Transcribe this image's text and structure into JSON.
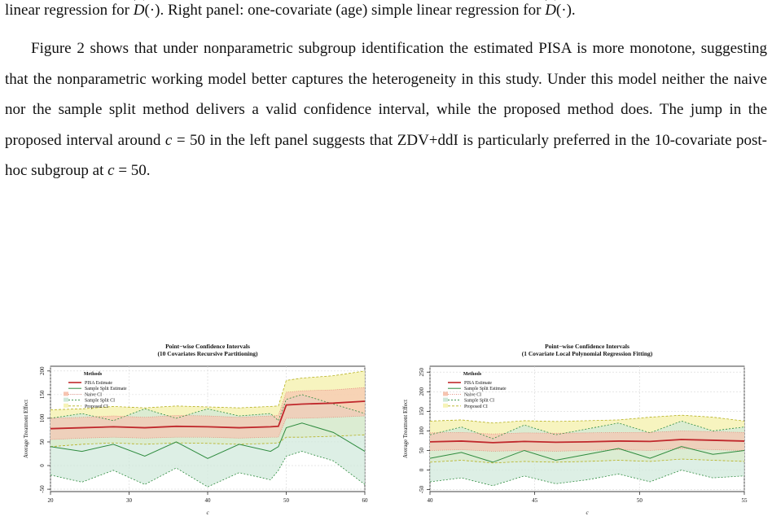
{
  "caption": {
    "part1": "linear regression for ",
    "part2": ". Right panel: one-covariate (age) simple linear regression for ",
    "part3": ".",
    "estimator": "D",
    "arg": "(·)"
  },
  "paragraph": {
    "s1": "Figure 2 shows that under nonparametric subgroup identification the estimated PISA is more monotone, suggesting that the nonparametric working model better captures the heterogeneity in this study. Under this model neither the naive nor the sample split method delivers a valid confidence interval, while the proposed method does.  The jump in the proposed interval around ",
    "s2": " in the left panel suggests that ZDV+ddI is particularly preferred in the 10-covariate post-hoc subgroup at ",
    "s3": ".",
    "c_expr": "c",
    "eq": " = 50"
  },
  "colors": {
    "pisa": "#c0282c",
    "split": "#2e8b3e",
    "naive_fill": "#f6c4b0",
    "split_fill": "#cfe8da",
    "proposed_fill": "#f6f3b8",
    "proposed_line": "#b5b01e",
    "naive_line": "#e08070"
  },
  "chart_data": [
    {
      "type": "line",
      "title": "Point−wise Confidence Intervals",
      "subtitle": "(10 Covariates Recursive Partitioning)",
      "xlabel": "c",
      "ylabel": "Average Treatment Effect",
      "xlim": [
        20,
        60
      ],
      "ylim": [
        -55,
        210
      ],
      "xticks": [
        "20",
        "30",
        "40",
        "50",
        "60"
      ],
      "yticks": [
        "-50",
        "0",
        "50",
        "100",
        "150",
        "200"
      ],
      "grid": true,
      "legend_title": "Methods",
      "legend_position": "top-left",
      "legend": [
        "PISA Estimate",
        "Sample Split Estimate",
        "Naive CI",
        "Sample Split CI",
        "Proposed CI"
      ],
      "x": [
        20,
        24,
        28,
        32,
        36,
        40,
        44,
        48,
        49,
        50,
        52,
        56,
        60
      ],
      "series": [
        {
          "name": "PISA Estimate",
          "values": [
            78,
            80,
            82,
            80,
            83,
            82,
            80,
            82,
            83,
            128,
            130,
            132,
            136
          ]
        },
        {
          "name": "Naive CI",
          "values_low": [
            55,
            58,
            60,
            58,
            60,
            60,
            58,
            60,
            60,
            100,
            100,
            102,
            105
          ],
          "values_high": [
            100,
            102,
            105,
            102,
            106,
            105,
            102,
            105,
            106,
            155,
            158,
            160,
            165
          ]
        },
        {
          "name": "Proposed CI",
          "values_low": [
            40,
            45,
            48,
            45,
            48,
            47,
            45,
            47,
            48,
            60,
            60,
            62,
            65
          ],
          "values_high": [
            118,
            120,
            125,
            122,
            126,
            124,
            122,
            125,
            126,
            180,
            185,
            190,
            200
          ]
        },
        {
          "name": "Sample Split Estimate",
          "values": [
            40,
            30,
            45,
            20,
            50,
            15,
            45,
            30,
            40,
            80,
            90,
            70,
            30
          ]
        },
        {
          "name": "Sample Split CI",
          "values_low": [
            -20,
            -35,
            -10,
            -40,
            -5,
            -45,
            -15,
            -30,
            -10,
            20,
            30,
            10,
            -40
          ],
          "values_high": [
            100,
            110,
            95,
            120,
            100,
            120,
            105,
            110,
            95,
            140,
            150,
            130,
            110
          ]
        }
      ]
    },
    {
      "type": "line",
      "title": "Point−wise Confidence Intervals",
      "subtitle": "(1 Covariate Local Polynomial Regression Fitting)",
      "xlabel": "c",
      "ylabel": "Average Treatment Effect",
      "xlim": [
        40,
        55
      ],
      "ylim": [
        -55,
        265
      ],
      "xticks": [
        "40",
        "45",
        "50",
        "55"
      ],
      "yticks": [
        "-50",
        "0",
        "50",
        "100",
        "150",
        "200",
        "250"
      ],
      "grid": true,
      "legend_title": "Methods",
      "legend_position": "top-left",
      "legend": [
        "PISA Estimate",
        "Sample Split Estimate",
        "Naive CI",
        "Sample Split CI",
        "Proposed CI"
      ],
      "x": [
        40,
        41.5,
        43,
        44.5,
        46,
        47.5,
        49,
        50.5,
        52,
        53.5,
        55
      ],
      "series": [
        {
          "name": "PISA Estimate",
          "values": [
            72,
            74,
            70,
            73,
            71,
            72,
            74,
            73,
            78,
            76,
            74
          ]
        },
        {
          "name": "Naive CI",
          "values_low": [
            50,
            52,
            48,
            50,
            48,
            50,
            52,
            50,
            55,
            52,
            50
          ],
          "values_high": [
            95,
            96,
            92,
            95,
            94,
            95,
            96,
            96,
            100,
            98,
            96
          ]
        },
        {
          "name": "Proposed CI",
          "values_low": [
            20,
            25,
            18,
            22,
            20,
            22,
            25,
            22,
            28,
            25,
            22
          ],
          "values_high": [
            125,
            128,
            120,
            126,
            124,
            126,
            128,
            135,
            140,
            135,
            125
          ]
        },
        {
          "name": "Sample Split Estimate",
          "values": [
            30,
            45,
            20,
            50,
            25,
            40,
            55,
            30,
            60,
            40,
            50
          ]
        },
        {
          "name": "Sample Split CI",
          "values_low": [
            -30,
            -20,
            -40,
            -15,
            -35,
            -25,
            -10,
            -30,
            0,
            -20,
            -15
          ],
          "values_high": [
            90,
            110,
            80,
            115,
            90,
            105,
            120,
            95,
            125,
            100,
            110
          ]
        }
      ]
    }
  ]
}
